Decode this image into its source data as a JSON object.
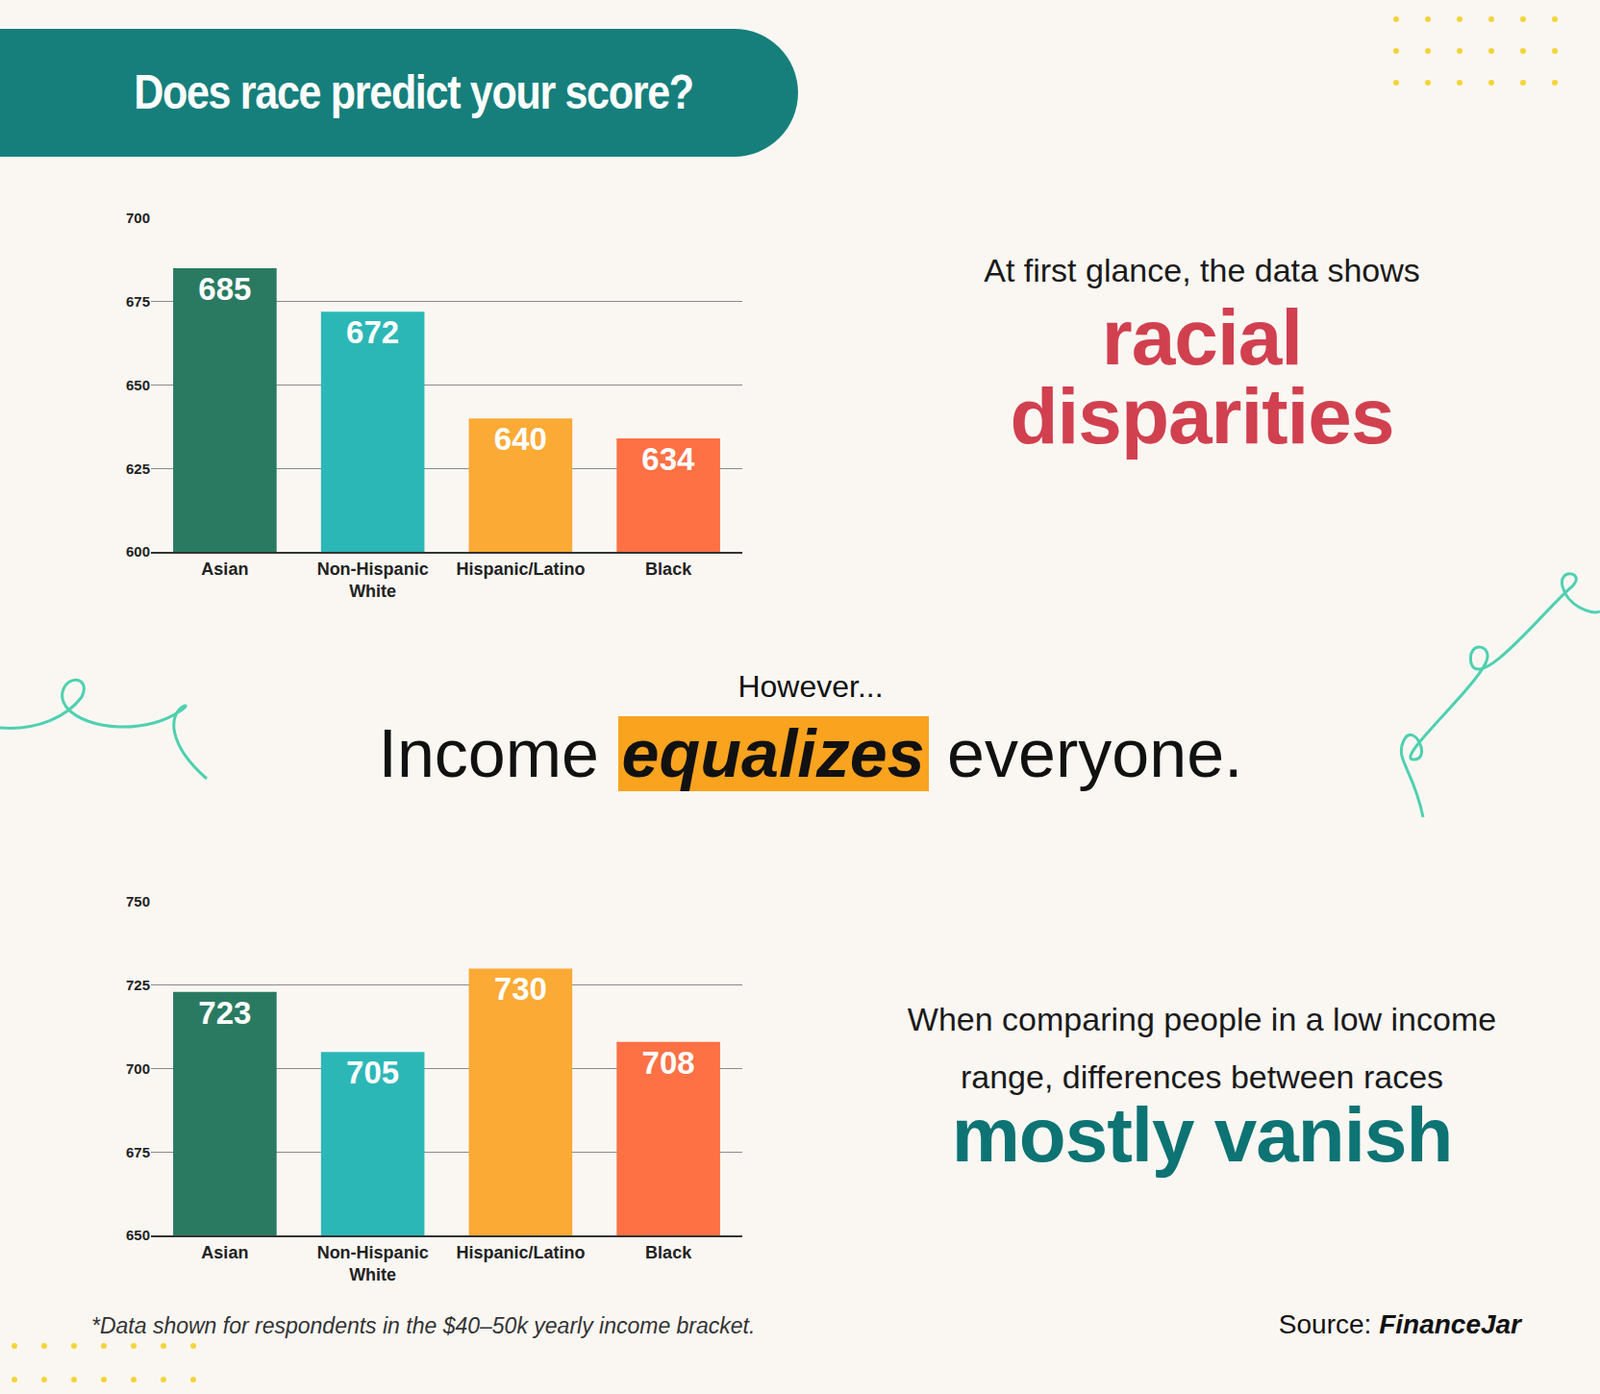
{
  "page": {
    "title": "Does race predict your score?",
    "intro": "At first glance, the data shows",
    "intro_emphasis": [
      "racial",
      "disparities"
    ],
    "transition": "However...",
    "headline": [
      "Income",
      "equalizes",
      "everyone."
    ],
    "comparison": [
      "When comparing people in a low income",
      "range, differences between races"
    ],
    "comparison_emphasis": "mostly vanish",
    "footnote": "*Data shown for respondents in the $40–50k yearly income bracket.",
    "source_label": "Source:",
    "source": "FinanceJar"
  },
  "chart_data": [
    {
      "type": "bar",
      "categories": [
        "Asian",
        "Non-Hispanic White",
        "Hispanic/Latino",
        "Black"
      ],
      "values": [
        685,
        672,
        640,
        634
      ],
      "colors": [
        "#2a7a62",
        "#2cb7b7",
        "#fbaa35",
        "#fd7145"
      ],
      "ylim": [
        600,
        700
      ],
      "yticks": [
        600,
        625,
        650,
        675,
        700
      ],
      "grid": true,
      "data_labels": true
    },
    {
      "type": "bar",
      "categories": [
        "Asian",
        "Non-Hispanic White",
        "Hispanic/Latino",
        "Black"
      ],
      "values": [
        723,
        705,
        730,
        708
      ],
      "colors": [
        "#2a7a62",
        "#2cb7b7",
        "#fbaa35",
        "#fd7145"
      ],
      "ylim": [
        650,
        750
      ],
      "yticks": [
        650,
        675,
        700,
        725,
        750
      ],
      "grid": true,
      "data_labels": true
    }
  ]
}
